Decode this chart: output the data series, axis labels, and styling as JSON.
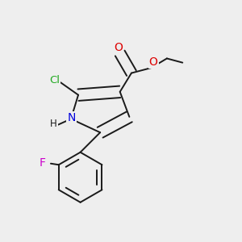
{
  "bg_color": "#eeeeee",
  "bond_color": "#1a1a1a",
  "N_color": "#0000dd",
  "O_color": "#dd0000",
  "Cl_color": "#22aa22",
  "F_color": "#cc00cc",
  "font_size": 9.5,
  "line_width": 1.4,
  "double_sep": 0.04,
  "fig_w": 3.0,
  "fig_h": 3.0,
  "dpi": 100,
  "xlim": [
    -0.1,
    1.05
  ],
  "ylim": [
    -0.05,
    1.05
  ]
}
